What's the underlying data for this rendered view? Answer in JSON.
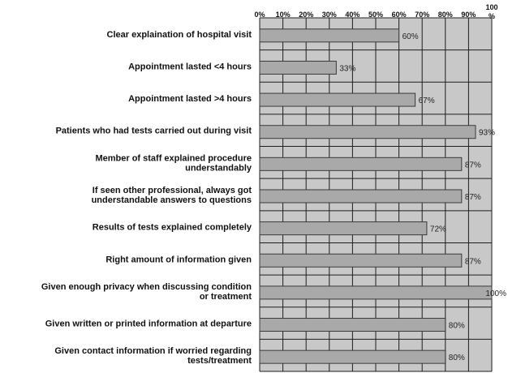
{
  "chart_data": {
    "type": "bar",
    "orientation": "horizontal",
    "title": "",
    "xlabel": "",
    "ylabel": "",
    "xlim": [
      0,
      100
    ],
    "grid": true,
    "tick_labels": [
      "0%",
      "10%",
      "20%",
      "30%",
      "40%",
      "50%",
      "60%",
      "70%",
      "80%",
      "90%",
      "100\n%"
    ],
    "categories": [
      [
        "Clear explaination of hospital visit"
      ],
      [
        "Appointment lasted <4 hours"
      ],
      [
        "Appointment lasted >4 hours"
      ],
      [
        "Patients who had tests carried out during visit"
      ],
      [
        "Member of staff explained procedure",
        "understandably"
      ],
      [
        "If seen other professional, always got",
        "understandable answers to questions"
      ],
      [
        "Results of tests explained completely"
      ],
      [
        "Right amount of information given"
      ],
      [
        "Given enough privacy when discussing condition",
        "or treatment"
      ],
      [
        "Given written or printed information at departure"
      ],
      [
        "Given contact information if worried regarding",
        "tests/treatment"
      ]
    ],
    "values": [
      60,
      33,
      67,
      93,
      87,
      87,
      72,
      87,
      100,
      80,
      80
    ],
    "value_labels": [
      "60%",
      "33%",
      "67%",
      "93%",
      "87%",
      "87%",
      "72%",
      "87%",
      "100%",
      "80%",
      "80%"
    ],
    "colors": {
      "plot_bg": "#c8c8c8",
      "bar_fill": "#a9a9a9",
      "bar_stroke": "#3a3a3a",
      "grid": "#1e1e1e"
    }
  }
}
